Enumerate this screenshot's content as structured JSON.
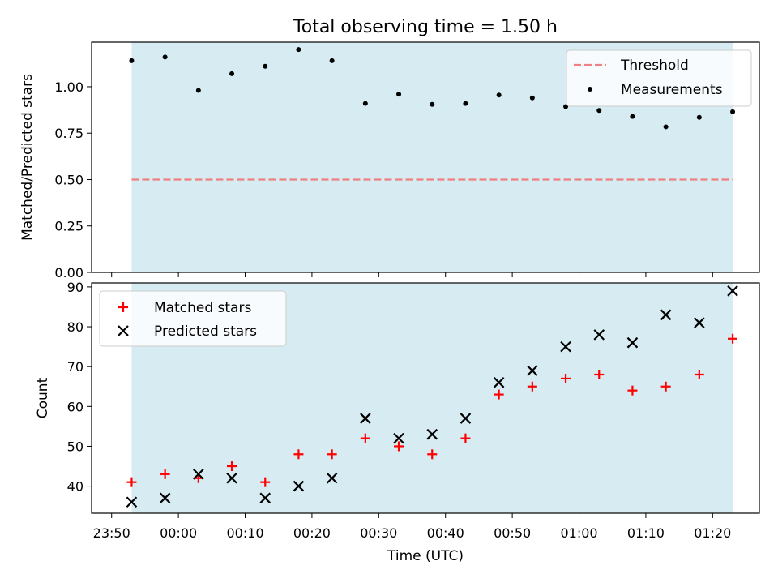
{
  "chart_data": [
    {
      "type": "scatter",
      "title": "Total observing time = 1.50 h",
      "xlabel": "",
      "ylabel": "Matched/Predicted stars",
      "xlim": [
        "23:47",
        "01:27"
      ],
      "ylim": [
        0.0,
        1.24
      ],
      "yticks": [
        "0.00",
        "0.25",
        "0.50",
        "0.75",
        "1.00"
      ],
      "shaded_span": [
        "23:53",
        "01:23"
      ],
      "legend_position": "top-right",
      "threshold": {
        "name": "Threshold",
        "value": 0.5,
        "color": "#f08080",
        "style": "dashed"
      },
      "series": [
        {
          "name": "Measurements",
          "marker": "dot",
          "color": "#000000",
          "x": [
            "23:53",
            "23:58",
            "00:03",
            "00:08",
            "00:13",
            "00:18",
            "00:23",
            "00:28",
            "00:33",
            "00:38",
            "00:43",
            "00:48",
            "00:53",
            "00:58",
            "01:03",
            "01:08",
            "01:13",
            "01:18",
            "01:23"
          ],
          "y": [
            1.14,
            1.16,
            0.98,
            1.07,
            1.11,
            1.2,
            1.14,
            0.91,
            0.96,
            0.905,
            0.91,
            0.955,
            0.94,
            0.893,
            0.872,
            0.84,
            0.784,
            0.835,
            0.865
          ]
        }
      ]
    },
    {
      "type": "scatter",
      "title": "",
      "xlabel": "Time (UTC)",
      "ylabel": "Count",
      "xlim": [
        "23:47",
        "01:27"
      ],
      "ylim": [
        33.2,
        91
      ],
      "yticks": [
        "40",
        "50",
        "60",
        "70",
        "80",
        "90"
      ],
      "xticks": [
        "23:50",
        "00:00",
        "00:10",
        "00:20",
        "00:30",
        "00:40",
        "00:50",
        "01:00",
        "01:10",
        "01:20"
      ],
      "shaded_span": [
        "23:53",
        "01:23"
      ],
      "legend_position": "top-left",
      "series": [
        {
          "name": "Matched stars",
          "marker": "plus",
          "color": "#ff0000",
          "x": [
            "23:53",
            "23:58",
            "00:03",
            "00:08",
            "00:13",
            "00:18",
            "00:23",
            "00:28",
            "00:33",
            "00:38",
            "00:43",
            "00:48",
            "00:53",
            "00:58",
            "01:03",
            "01:08",
            "01:13",
            "01:18",
            "01:23"
          ],
          "y": [
            41,
            43,
            42,
            45,
            41,
            48,
            48,
            52,
            50,
            48,
            52,
            63,
            65,
            67,
            68,
            64,
            65,
            68,
            77
          ]
        },
        {
          "name": "Predicted stars",
          "marker": "x",
          "color": "#000000",
          "x": [
            "23:53",
            "23:58",
            "00:03",
            "00:08",
            "00:13",
            "00:18",
            "00:23",
            "00:28",
            "00:33",
            "00:38",
            "00:43",
            "00:48",
            "00:53",
            "00:58",
            "01:03",
            "01:08",
            "01:13",
            "01:18",
            "01:23"
          ],
          "y": [
            36,
            37,
            43,
            42,
            37,
            40,
            42,
            57,
            52,
            53,
            57,
            66,
            69,
            75,
            78,
            76,
            83,
            81,
            89
          ]
        }
      ]
    }
  ],
  "colors": {
    "shade": "#add8e6",
    "shade_opacity": 0.5
  }
}
